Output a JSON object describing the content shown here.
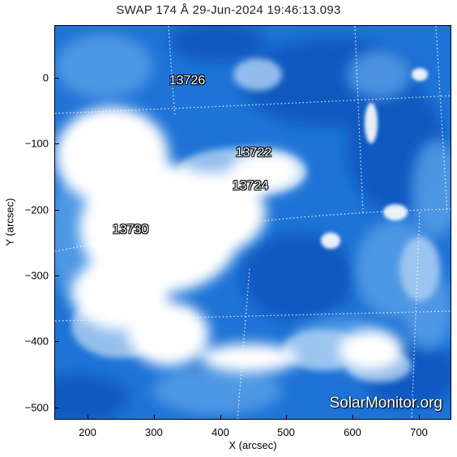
{
  "map": {
    "title": "SWAP 174 Å 29-Jun-2024 19:46:13.093",
    "watermark": "SolarMonitor.org",
    "x_axis_label": "X (arcsec)",
    "y_axis_label": "Y (arcsec)",
    "x_range": [
      150,
      750
    ],
    "y_range": [
      -520,
      80
    ],
    "x_ticks": [
      200,
      300,
      400,
      500,
      600,
      700
    ],
    "y_ticks": [
      0,
      -100,
      -200,
      -300,
      -400,
      -500
    ],
    "colormap": [
      "#0a4fb8",
      "#1f73d6",
      "#5aa0e8",
      "#a9ccf2",
      "#ffffff"
    ],
    "active_regions": [
      {
        "number": "13726",
        "x": 345,
        "y": 0
      },
      {
        "number": "13722",
        "x": 445,
        "y": -110
      },
      {
        "number": "13724",
        "x": 440,
        "y": -160
      },
      {
        "number": "13730",
        "x": 265,
        "y": -228
      }
    ]
  }
}
